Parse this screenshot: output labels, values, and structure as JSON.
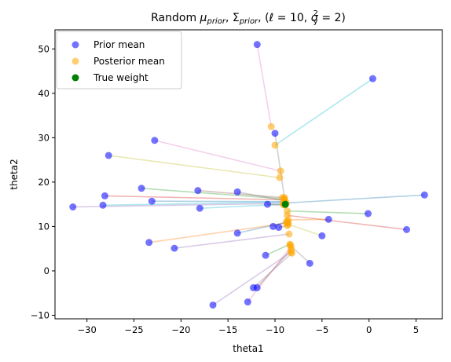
{
  "chart_data": {
    "type": "scatter",
    "title_parts": {
      "prefix": "Random ",
      "mu": "μ",
      "sub_prior": "prior",
      "sep1": ", ",
      "sigma": "Σ",
      "sep2": ", (",
      "ell": "ℓ",
      "eq1": " = 10, ",
      "sigma_small": "σ",
      "sub_y": "y",
      "sup_2": "2",
      "eq2": " = 2)"
    },
    "xlabel": "theta1",
    "ylabel": "theta2",
    "xlim": [
      -33.4,
      7.8
    ],
    "ylim": [
      -10.8,
      54.3
    ],
    "xticks": [
      -30,
      -25,
      -20,
      -15,
      -10,
      -5,
      0,
      5
    ],
    "yticks": [
      -10,
      0,
      10,
      20,
      30,
      40,
      50
    ],
    "legend_position": "upper left",
    "legend": [
      {
        "label": "Prior mean",
        "color": "#0000ff",
        "alpha": 0.55
      },
      {
        "label": "Posterior mean",
        "color": "#ffa500",
        "alpha": 0.55
      },
      {
        "label": "True weight",
        "color": "#008000",
        "alpha": 1
      }
    ],
    "true_weight": [
      -8.9,
      15.0
    ],
    "pairs": [
      {
        "prior": [
          -11.9,
          51.0
        ],
        "posterior": [
          -10.4,
          32.5
        ],
        "color": "#e377c2"
      },
      {
        "prior": [
          0.4,
          43.3
        ],
        "posterior": [
          -10.0,
          28.3
        ],
        "color": "#17becf"
      },
      {
        "prior": [
          -10.0,
          31.0
        ],
        "posterior": [
          -9.0,
          16.5
        ],
        "color": "#7f7f7f"
      },
      {
        "prior": [
          -22.8,
          29.4
        ],
        "posterior": [
          -9.4,
          22.5
        ],
        "color": "#e377c2"
      },
      {
        "prior": [
          -27.7,
          26.0
        ],
        "posterior": [
          -9.5,
          21.0
        ],
        "color": "#bcbd22"
      },
      {
        "prior": [
          -24.2,
          18.6
        ],
        "posterior": [
          -9.0,
          16.2
        ],
        "color": "#2ca02c"
      },
      {
        "prior": [
          -18.2,
          18.1
        ],
        "posterior": [
          -9.2,
          16.5
        ],
        "color": "#8c564b"
      },
      {
        "prior": [
          -14.0,
          17.8
        ],
        "posterior": [
          -9.0,
          15.8
        ],
        "color": "#7f7f7f"
      },
      {
        "prior": [
          -28.1,
          16.9
        ],
        "posterior": [
          -9.0,
          16.0
        ],
        "color": "#d62728"
      },
      {
        "prior": [
          -28.3,
          14.8
        ],
        "posterior": [
          -9.0,
          15.5
        ],
        "color": "#17becf"
      },
      {
        "prior": [
          -31.5,
          14.4
        ],
        "posterior": [
          -9.1,
          15.2
        ],
        "color": "#9467bd"
      },
      {
        "prior": [
          -23.1,
          15.7
        ],
        "posterior": [
          -9.0,
          15.6
        ],
        "color": "#1f77b4"
      },
      {
        "prior": [
          -18.0,
          14.1
        ],
        "posterior": [
          -9.1,
          15.0
        ],
        "color": "#17becf"
      },
      {
        "prior": [
          -10.8,
          15.0
        ],
        "posterior": [
          -9.0,
          14.8
        ],
        "color": "#8c564b"
      },
      {
        "prior": [
          5.9,
          17.1
        ],
        "posterior": [
          -8.8,
          15.3
        ],
        "color": "#1f77b4"
      },
      {
        "prior": [
          -0.1,
          12.9
        ],
        "posterior": [
          -8.7,
          13.5
        ],
        "color": "#2ca02c"
      },
      {
        "prior": [
          4.0,
          9.3
        ],
        "posterior": [
          -8.7,
          12.5
        ],
        "color": "#d62728"
      },
      {
        "prior": [
          -4.3,
          11.6
        ],
        "posterior": [
          -8.6,
          11.5
        ],
        "color": "#ff7f0e"
      },
      {
        "prior": [
          -5.0,
          7.9
        ],
        "posterior": [
          -8.6,
          10.5
        ],
        "color": "#bcbd22"
      },
      {
        "prior": [
          -10.2,
          10.0
        ],
        "posterior": [
          -8.8,
          11.0
        ],
        "color": "#9467bd"
      },
      {
        "prior": [
          -9.6,
          9.8
        ],
        "posterior": [
          -8.7,
          10.2
        ],
        "color": "#8c564b"
      },
      {
        "prior": [
          -14.0,
          8.5
        ],
        "posterior": [
          -8.7,
          11.0
        ],
        "color": "#1f77b4"
      },
      {
        "prior": [
          -23.4,
          6.4
        ],
        "posterior": [
          -8.6,
          10.8
        ],
        "color": "#ff7f0e"
      },
      {
        "prior": [
          -20.7,
          5.1
        ],
        "posterior": [
          -8.5,
          8.3
        ],
        "color": "#9467bd"
      },
      {
        "prior": [
          -6.3,
          1.7
        ],
        "posterior": [
          -8.4,
          5.8
        ],
        "color": "#7f7f7f"
      },
      {
        "prior": [
          -11.0,
          3.5
        ],
        "posterior": [
          -8.4,
          6.0
        ],
        "color": "#2ca02c"
      },
      {
        "prior": [
          -11.9,
          -3.8
        ],
        "posterior": [
          -8.3,
          4.8
        ],
        "color": "#8c564b"
      },
      {
        "prior": [
          -12.3,
          -3.8
        ],
        "posterior": [
          -8.2,
          4.0
        ],
        "color": "#7f7f7f"
      },
      {
        "prior": [
          -12.9,
          -7.0
        ],
        "posterior": [
          -8.3,
          5.5
        ],
        "color": "#e377c2"
      },
      {
        "prior": [
          -16.6,
          -7.7
        ],
        "posterior": [
          -8.3,
          4.2
        ],
        "color": "#9467bd"
      }
    ]
  }
}
